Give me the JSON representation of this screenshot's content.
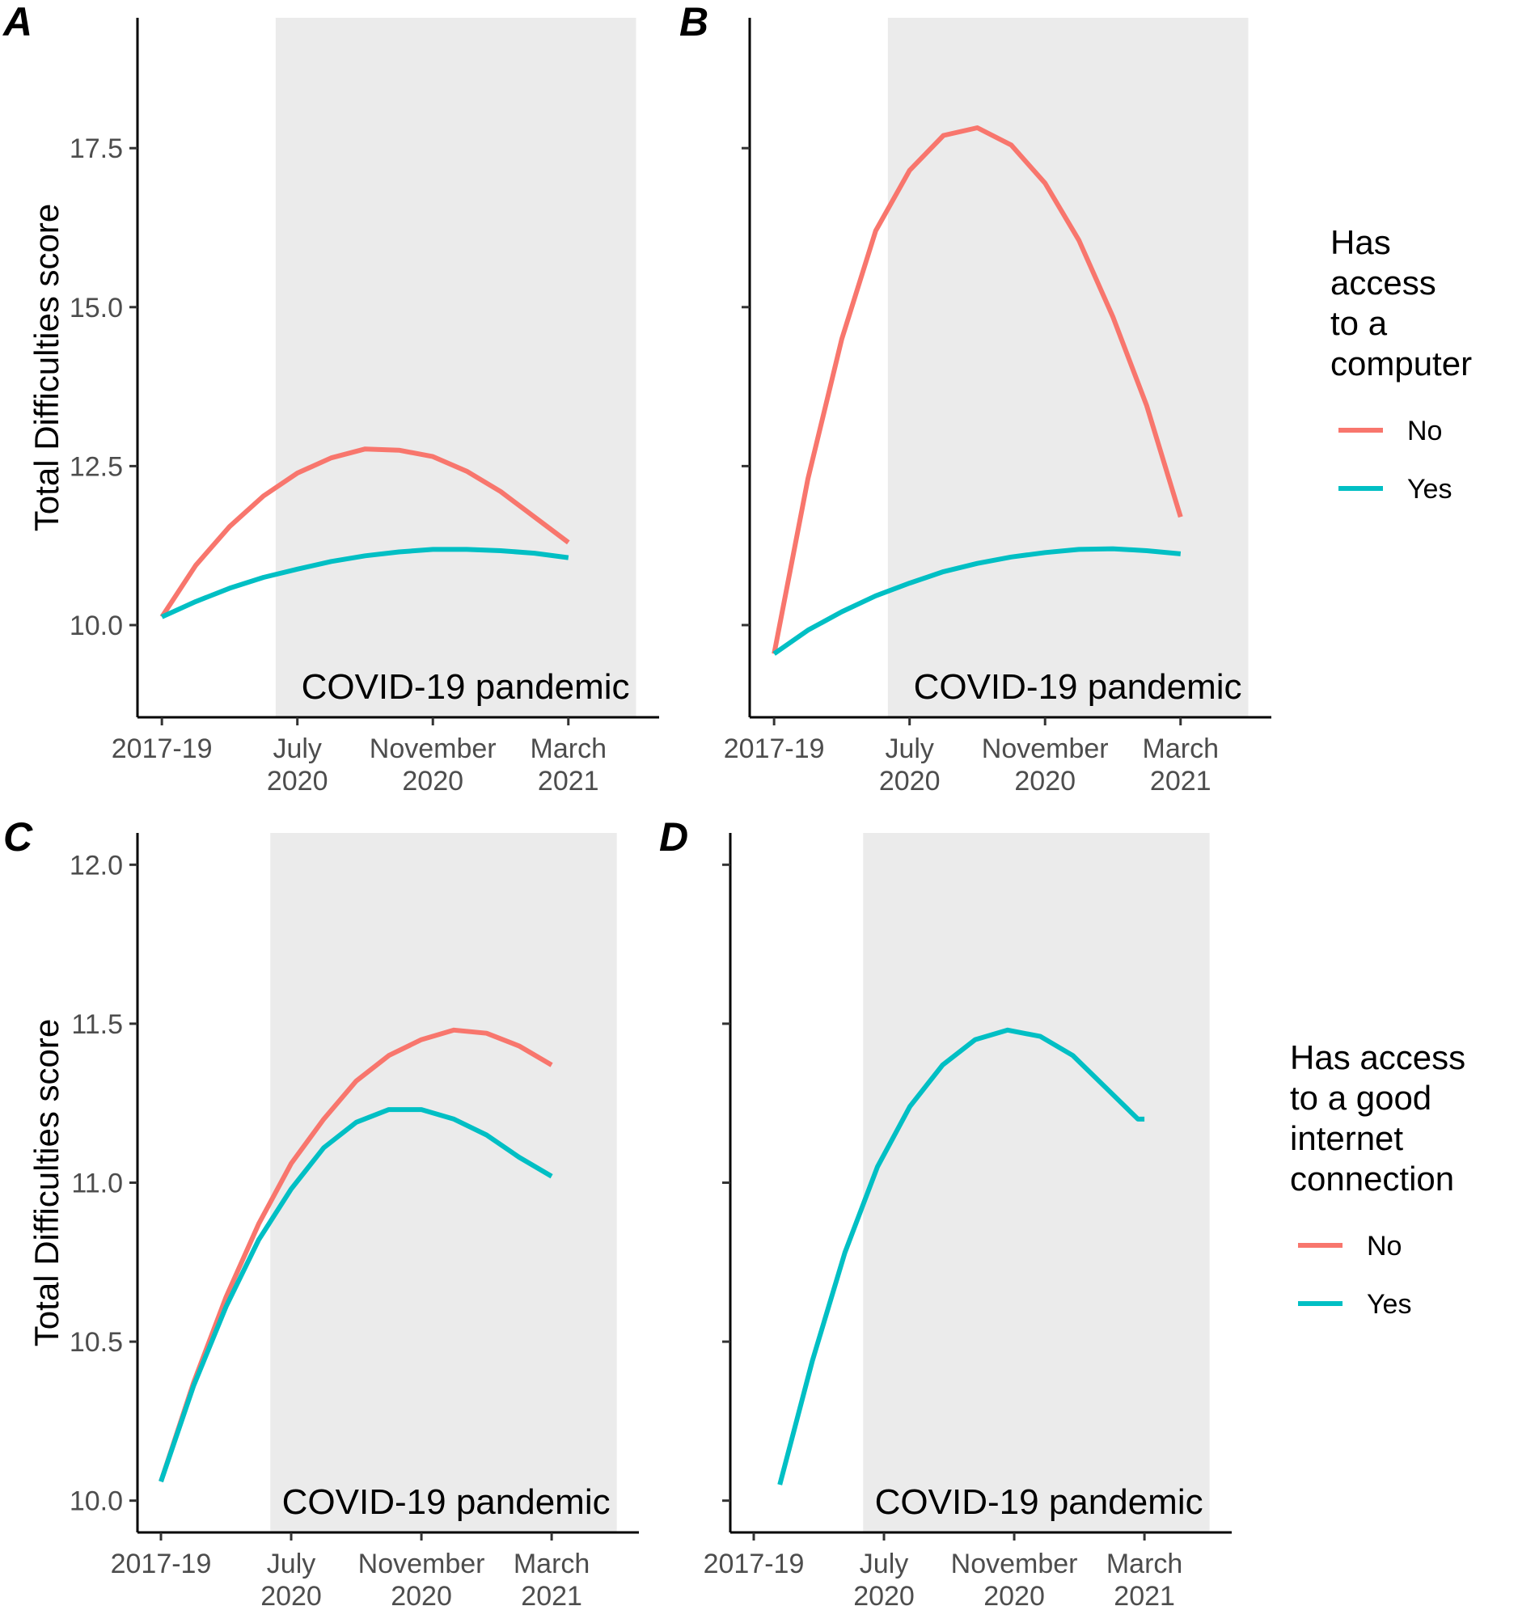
{
  "colors": {
    "no": "#F8766D",
    "yes": "#00BFC4",
    "shade": "#EBEBEB",
    "axis": "#000000",
    "tick_text": "#4D4D4D"
  },
  "chart_data": [
    {
      "panel": "A",
      "type": "line",
      "ylabel": "Total Difficulties score",
      "ylim": [
        8.55,
        19.55
      ],
      "yticks": [
        10.0,
        12.5,
        15.0,
        17.5
      ],
      "ytick_labels": [
        "10.0",
        "12.5",
        "15.0",
        "17.5"
      ],
      "show_ytick_labels": true,
      "x_categories": [
        "2017-19",
        "July\n2020",
        "November\n2020",
        "March\n2021"
      ],
      "xlim": [
        -0.18,
        3.67
      ],
      "shaded_region": {
        "x_from": 0.84,
        "x_to": 3.5,
        "label": "COVID-19 pandemic"
      },
      "series": [
        {
          "name": "No",
          "color_key": "no",
          "x": [
            0,
            0.25,
            0.5,
            0.75,
            1,
            1.25,
            1.5,
            1.75,
            2,
            2.25,
            2.5,
            2.75,
            3
          ],
          "y": [
            10.13,
            10.94,
            11.55,
            12.03,
            12.39,
            12.63,
            12.77,
            12.75,
            12.65,
            12.42,
            12.1,
            11.7,
            11.3
          ]
        },
        {
          "name": "Yes",
          "color_key": "yes",
          "x": [
            0,
            0.25,
            0.5,
            0.75,
            1,
            1.25,
            1.5,
            1.75,
            2,
            2.25,
            2.5,
            2.75,
            3
          ],
          "y": [
            10.13,
            10.37,
            10.58,
            10.75,
            10.88,
            11.0,
            11.09,
            11.15,
            11.19,
            11.19,
            11.17,
            11.13,
            11.06
          ]
        }
      ]
    },
    {
      "panel": "B",
      "type": "line",
      "ylabel": "",
      "ylim": [
        8.55,
        19.55
      ],
      "yticks": [
        10.0,
        12.5,
        15.0,
        17.5
      ],
      "ytick_labels": [
        "10.0",
        "12.5",
        "15.0",
        "17.5"
      ],
      "show_ytick_labels": false,
      "x_categories": [
        "2017-19",
        "July\n2020",
        "November\n2020",
        "March\n2021"
      ],
      "xlim": [
        -0.18,
        3.67
      ],
      "shaded_region": {
        "x_from": 0.84,
        "x_to": 3.5,
        "label": "COVID-19 pandemic"
      },
      "series": [
        {
          "name": "No",
          "color_key": "no",
          "x": [
            0,
            0.25,
            0.5,
            0.75,
            1,
            1.25,
            1.5,
            1.75,
            2,
            2.25,
            2.5,
            2.75,
            3
          ],
          "y": [
            9.55,
            12.3,
            14.5,
            16.2,
            17.15,
            17.7,
            17.82,
            17.55,
            16.95,
            16.05,
            14.85,
            13.45,
            11.7
          ]
        },
        {
          "name": "Yes",
          "color_key": "yes",
          "x": [
            0,
            0.25,
            0.5,
            0.75,
            1,
            1.25,
            1.5,
            1.75,
            2,
            2.25,
            2.5,
            2.75,
            3
          ],
          "y": [
            9.55,
            9.92,
            10.21,
            10.46,
            10.66,
            10.84,
            10.97,
            11.07,
            11.14,
            11.19,
            11.2,
            11.17,
            11.12
          ]
        }
      ]
    },
    {
      "panel": "C",
      "type": "line",
      "ylabel": "Total Difficulties score",
      "ylim": [
        9.9,
        12.1
      ],
      "yticks": [
        10.0,
        10.5,
        11.0,
        11.5,
        12.0
      ],
      "ytick_labels": [
        "10.0",
        "10.5",
        "11.0",
        "11.5",
        "12.0"
      ],
      "show_ytick_labels": true,
      "x_categories": [
        "2017-19",
        "July\n2020",
        "November\n2020",
        "March\n2021"
      ],
      "xlim": [
        -0.18,
        3.67
      ],
      "shaded_region": {
        "x_from": 0.84,
        "x_to": 3.5,
        "label": "COVID-19 pandemic"
      },
      "series": [
        {
          "name": "No",
          "color_key": "no",
          "x": [
            0,
            0.25,
            0.5,
            0.75,
            1,
            1.25,
            1.5,
            1.75,
            2,
            2.25,
            2.5,
            2.75,
            3
          ],
          "y": [
            10.06,
            10.37,
            10.64,
            10.87,
            11.06,
            11.2,
            11.32,
            11.4,
            11.45,
            11.48,
            11.47,
            11.43,
            11.37
          ]
        },
        {
          "name": "Yes",
          "color_key": "yes",
          "x": [
            0,
            0.25,
            0.5,
            0.75,
            1,
            1.25,
            1.5,
            1.75,
            2,
            2.25,
            2.5,
            2.75,
            3
          ],
          "y": [
            10.06,
            10.36,
            10.61,
            10.82,
            10.98,
            11.11,
            11.19,
            11.23,
            11.23,
            11.2,
            11.15,
            11.08,
            11.02
          ]
        }
      ]
    },
    {
      "panel": "D",
      "type": "line",
      "ylabel": "",
      "ylim": [
        9.9,
        12.1
      ],
      "yticks": [
        10.0,
        10.5,
        11.0,
        11.5,
        12.0
      ],
      "ytick_labels": [
        "10.0",
        "10.5",
        "11.0",
        "11.5",
        "12.0"
      ],
      "show_ytick_labels": false,
      "x_categories": [
        "2017-19",
        "July\n2020",
        "November\n2020",
        "March\n2021"
      ],
      "xlim": [
        -0.18,
        3.67
      ],
      "shaded_region": {
        "x_from": 0.84,
        "x_to": 3.5,
        "label": "COVID-19 pandemic"
      },
      "series": [
        {
          "name": "Yes",
          "color_key": "yes",
          "x": [
            0.2,
            0.45,
            0.7,
            0.95,
            1.2,
            1.45,
            1.7,
            1.95,
            2.2,
            2.45,
            2.7,
            2.95,
            3.0
          ],
          "y": [
            10.05,
            10.44,
            10.78,
            11.05,
            11.24,
            11.37,
            11.45,
            11.48,
            11.46,
            11.4,
            11.3,
            11.2,
            11.2
          ]
        }
      ]
    }
  ],
  "legends": [
    {
      "title_lines": [
        "Has",
        "access",
        "to a",
        "computer"
      ],
      "items": [
        {
          "label": "No",
          "color_key": "no"
        },
        {
          "label": "Yes",
          "color_key": "yes"
        }
      ]
    },
    {
      "title_lines": [
        "Has access",
        "to a good",
        "internet",
        "connection"
      ],
      "items": [
        {
          "label": "No",
          "color_key": "no"
        },
        {
          "label": "Yes",
          "color_key": "yes"
        }
      ]
    }
  ]
}
